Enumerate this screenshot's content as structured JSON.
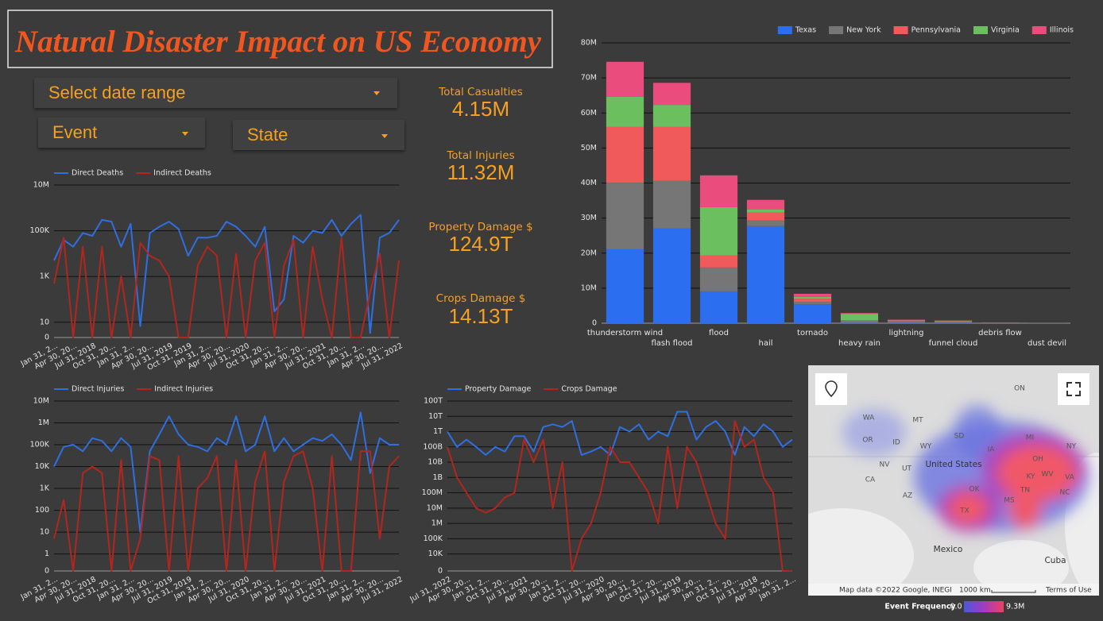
{
  "header": {
    "title": "Natural Disaster Impact on US Economy"
  },
  "controls": [
    "Select date range",
    "Event",
    "State"
  ],
  "kpis": [
    {
      "label": "Total Casualties",
      "value": "4.15M"
    },
    {
      "label": "Total Injuries",
      "value": "11.32M"
    },
    {
      "label": "Property Damage $",
      "value": "124.9T"
    },
    {
      "label": "Crops Damage $",
      "value": "14.13T"
    }
  ],
  "map": {
    "labels": [
      "WA",
      "MT",
      "OR",
      "ID",
      "WY",
      "SD",
      "NV",
      "UT",
      "CA",
      "AZ",
      "IA",
      "United States",
      "MI",
      "NY",
      "OH",
      "KY",
      "WV",
      "VA",
      "NC",
      "TN",
      "OK",
      "MS",
      "TX",
      "ON",
      "Mexico",
      "Cuba"
    ],
    "attribution": "Map data ©2022 Google, INEGI",
    "scale": "1000 km",
    "terms": "Terms of Use",
    "legend": {
      "title": "Event Frequency",
      "min": "0.0",
      "max": "9.3M"
    }
  },
  "chart_data": [
    {
      "type": "bar",
      "stacked": true,
      "legend": "top-right",
      "grid": true,
      "categories": [
        "thunderstorm wind",
        "flash flood",
        "flood",
        "hail",
        "tornado",
        "heavy rain",
        "lightning",
        "funnel cloud",
        "debris flow",
        "dust devil"
      ],
      "series": [
        {
          "name": "Texas",
          "color": "#2b6ff0",
          "values": [
            21100000,
            27000000,
            9100000,
            27700000,
            5400000,
            100000,
            100000,
            100000,
            50000,
            20000
          ]
        },
        {
          "name": "New York",
          "color": "#767676",
          "values": [
            19000000,
            13600000,
            6800000,
            1600000,
            700000,
            600000,
            500000,
            200000,
            100000,
            20000
          ]
        },
        {
          "name": "Pennsylvania",
          "color": "#f05a5a",
          "values": [
            15900000,
            15400000,
            3400000,
            2300000,
            900000,
            200000,
            200000,
            300000,
            50000,
            10000
          ]
        },
        {
          "name": "Virginia",
          "color": "#6bbf5f",
          "values": [
            8600000,
            6300000,
            13800000,
            900000,
            500000,
            1800000,
            100000,
            100000,
            20000,
            10000
          ]
        },
        {
          "name": "Illinois",
          "color": "#ea4c7d",
          "values": [
            10000000,
            6300000,
            9100000,
            2700000,
            900000,
            200000,
            100000,
            100000,
            20000,
            10000
          ]
        }
      ],
      "ylim": [
        0,
        80000000
      ],
      "yticks": [
        0,
        {
          "value": 10000000,
          "label": "10M"
        },
        {
          "value": 20000000,
          "label": "20M"
        },
        {
          "value": 30000000,
          "label": "30M"
        },
        {
          "value": 40000000,
          "label": "40M"
        },
        {
          "value": 50000000,
          "label": "50M"
        },
        {
          "value": 60000000,
          "label": "60M"
        },
        {
          "value": 70000000,
          "label": "70M"
        },
        {
          "value": 80000000,
          "label": "80M"
        }
      ]
    },
    {
      "type": "line",
      "log": true,
      "legend": "top-left",
      "grid": true,
      "categories": [
        "Jan 31, 2...",
        null,
        "Apr 30, 20...",
        null,
        "Jul 31, 2018",
        null,
        "Oct 31, 20...",
        null,
        "Jan 31, 2...",
        null,
        "Apr 30, 20...",
        null,
        "Jul 31, 2019",
        null,
        "Oct 31, 2019",
        null,
        "Jan 31, 2...",
        null,
        "Apr 30, 20...",
        null,
        "Jul 31, 2020",
        null,
        "Oct 31, 20...",
        null,
        "Jan 31, 2...",
        null,
        "Apr 30, 20...",
        null,
        "Jul 31, 2021",
        null,
        "Oct 31, 20...",
        null,
        "Jan 31, 2...",
        null,
        "Apr 30, 20...",
        null,
        "Jul 31, 2022"
      ],
      "series": [
        {
          "name": "Direct Deaths",
          "color": "#2f6fe0",
          "values": [
            5000,
            40000,
            20000,
            80000,
            60000,
            300000,
            250000,
            20000,
            200000,
            5,
            80000,
            150000,
            250000,
            120000,
            8000,
            50000,
            50000,
            60000,
            250000,
            150000,
            60000,
            20000,
            150000,
            30,
            100,
            60000,
            30000,
            100000,
            80000,
            300000,
            60000,
            200000,
            500000,
            1,
            50000,
            80000,
            300000
          ]
        },
        {
          "name": "Indirect Deaths",
          "color": "#b3261e",
          "values": [
            500,
            50000,
            0,
            20000,
            0,
            20000,
            0,
            1000,
            0,
            30000,
            8000,
            5000,
            1000,
            0,
            0,
            3000,
            20000,
            8000,
            0,
            10000,
            0,
            5000,
            30000,
            0,
            3000,
            40000,
            0,
            20000,
            100,
            0,
            50000,
            0,
            0,
            200,
            10000,
            0,
            5000
          ]
        }
      ],
      "ylim": [
        0,
        10000000
      ],
      "yticks": [
        0,
        10,
        {
          "value": 1000,
          "label": "1K"
        },
        {
          "value": 100000,
          "label": "100K"
        },
        {
          "value": 10000000,
          "label": "10M"
        }
      ]
    },
    {
      "type": "line",
      "log": true,
      "legend": "top-left",
      "grid": true,
      "categories": [
        "Jan 31, 2...",
        null,
        "Apr 30, 20...",
        null,
        "Jul 31, 2018",
        null,
        "Oct 31, 20...",
        null,
        "Jan 31, 2...",
        null,
        "Apr 30, 20...",
        null,
        "Jul 31, 2019",
        null,
        "Oct 31, 2019",
        null,
        "Jan 31, 2...",
        null,
        "Apr 30, 20...",
        null,
        "Jul 31, 2020",
        null,
        "Oct 31, 20...",
        null,
        "Jan 31, 2...",
        null,
        "Apr 30, 20...",
        null,
        "Jul 31, 2021",
        null,
        "Oct 31, 20...",
        null,
        "Jan 31, 2...",
        null,
        "Apr 30, 20...",
        null,
        "Jul 31, 2022"
      ],
      "series": [
        {
          "name": "Direct Injuries",
          "color": "#2f6fe0",
          "values": [
            10000,
            80000,
            100000,
            50000,
            200000,
            150000,
            50000,
            200000,
            80000,
            10,
            50000,
            300000,
            2000000,
            300000,
            100000,
            80000,
            50000,
            200000,
            100000,
            2000000,
            50000,
            100000,
            2000000,
            50000,
            200000,
            50000,
            100000,
            200000,
            150000,
            300000,
            100000,
            20000,
            3000000,
            5000,
            200000,
            100000,
            100000
          ]
        },
        {
          "name": "Indirect Injuries",
          "color": "#b3261e",
          "values": [
            5,
            300,
            0,
            5000,
            10000,
            5000,
            0,
            20000,
            0,
            5,
            30000,
            20000,
            0,
            30000,
            0,
            1000,
            3000,
            30000,
            0,
            20000,
            0,
            2000,
            50000,
            0,
            2000,
            30000,
            50000,
            1000,
            0,
            30000,
            0,
            0,
            50000,
            50000,
            5,
            10000,
            30000
          ]
        }
      ],
      "ylim": [
        0,
        10000000
      ],
      "yticks": [
        0,
        1,
        10,
        100,
        {
          "value": 1000,
          "label": "1K"
        },
        {
          "value": 10000,
          "label": "10K"
        },
        {
          "value": 100000,
          "label": "100K"
        },
        {
          "value": 1000000,
          "label": "1M"
        },
        {
          "value": 10000000,
          "label": "10M"
        }
      ]
    },
    {
      "type": "line",
      "log": true,
      "legend": "top-left",
      "grid": true,
      "categories": [
        "Jul 31, 2022",
        null,
        "Apr 30, 20...",
        null,
        "Jan 31, 2...",
        null,
        "Oct 31, 20...",
        null,
        "Jul 31, 2021",
        null,
        "Apr 30, 20...",
        null,
        "Jan 31, 2...",
        null,
        "Oct 31, 20...",
        null,
        "Jul 31, 2020",
        null,
        "Apr 30, 20...",
        null,
        "Jan 31, 2...",
        null,
        "Oct 31, 20...",
        null,
        "Jul 31, 2019",
        null,
        "Apr 30, 20...",
        null,
        "Jan 31, 2...",
        null,
        "Oct 31, 20...",
        null,
        "Jul 31, 2018",
        null,
        "Apr 30, 20...",
        null,
        "Jan 31, 2..."
      ],
      "series": [
        {
          "name": "Property Damage",
          "color": "#2f6fe0",
          "values": [
            1000000000000.0,
            100000000000.0,
            300000000000.0,
            100000000000.0,
            30000000000.0,
            100000000000.0,
            50000000000.0,
            500000000000.0,
            500000000000.0,
            50000000000.0,
            2000000000000.0,
            3000000000000.0,
            2000000000000.0,
            5000000000000.0,
            30000000000.0,
            50000000000.0,
            100000000000.0,
            30000000000.0,
            2000000000000.0,
            1000000000000.0,
            3000000000000.0,
            300000000000.0,
            1000000000000.0,
            500000000000.0,
            20000000000000.0,
            20000000000000.0,
            300000000000.0,
            2000000000000.0,
            5000000000000.0,
            1000000000000.0,
            30000000000.0,
            2000000000000.0,
            500000000000.0,
            3000000000000.0,
            1000000000000.0,
            100000000000.0,
            300000000000.0
          ]
        },
        {
          "name": "Crops Damage",
          "color": "#b3261e",
          "values": [
            100000000000.0,
            1000000000.0,
            100000000.0,
            10000000.0,
            5000000.0,
            10000000.0,
            50000000.0,
            100000000.0,
            300000000000.0,
            10000000000.0,
            300000000000.0,
            10000000.0,
            10000000000.0,
            0,
            100000.0,
            1000000.0,
            100000000.0,
            100000000000.0,
            10000000000.0,
            10000000000.0,
            1000000000.0,
            100000000.0,
            1000000.0,
            100000000000.0,
            10000000.0,
            100000000000.0,
            10000000000.0,
            100000000.0,
            1000000.0,
            100000.0,
            5000000000000.0,
            100000000000.0,
            300000000000.0,
            1000000000.0,
            100000000.0,
            0,
            0
          ]
        }
      ],
      "ylim": [
        0,
        100000000000000.0
      ],
      "yticks": [
        0,
        {
          "value": 10000,
          "label": "10K"
        },
        {
          "value": 100000,
          "label": "100K"
        },
        {
          "value": 1000000,
          "label": "1M"
        },
        {
          "value": 10000000,
          "label": "10M"
        },
        {
          "value": 100000000,
          "label": "100M"
        },
        {
          "value": 1000000000,
          "label": "1B"
        },
        {
          "value": 10000000000,
          "label": "10B"
        },
        {
          "value": 100000000000,
          "label": "100B"
        },
        {
          "value": 1000000000000,
          "label": "1T"
        },
        {
          "value": 10000000000000,
          "label": "10T"
        },
        {
          "value": 100000000000000,
          "label": "100T"
        }
      ]
    }
  ]
}
